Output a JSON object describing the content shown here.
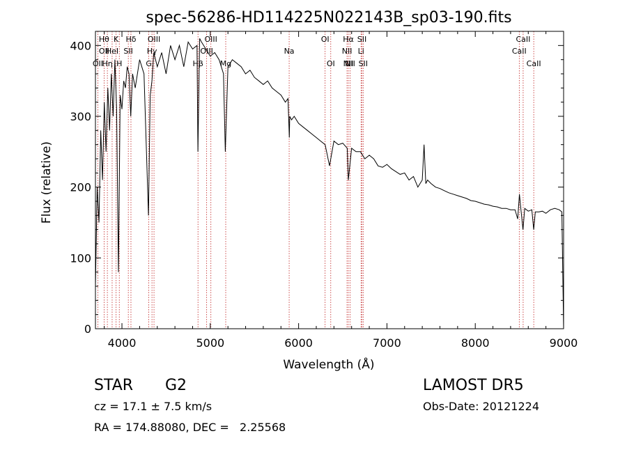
{
  "chart_data": {
    "type": "line",
    "title": "spec-56286-HD114225N022143B_sp03-190.fits",
    "xlabel": "Wavelength (Å)",
    "ylabel": "Flux (relative)",
    "xlim": [
      3700,
      9000
    ],
    "ylim": [
      0,
      420
    ],
    "xticks": [
      4000,
      5000,
      6000,
      7000,
      8000,
      9000
    ],
    "yticks": [
      0,
      100,
      200,
      300,
      400
    ],
    "grid": false,
    "series": [
      {
        "x": [
          3700,
          3720,
          3740,
          3760,
          3780,
          3800,
          3820,
          3840,
          3860,
          3880,
          3900,
          3920,
          3940,
          3960,
          3980,
          4000,
          4020,
          4040,
          4060,
          4080,
          4100,
          4120,
          4150,
          4200,
          4250,
          4300,
          4320,
          4340,
          4360,
          4400,
          4450,
          4500,
          4550,
          4600,
          4650,
          4700,
          4750,
          4800,
          4850,
          4860,
          4880,
          4900,
          4950,
          5000,
          5050,
          5100,
          5150,
          5170,
          5200,
          5250,
          5300,
          5350,
          5400,
          5450,
          5500,
          5550,
          5600,
          5650,
          5700,
          5750,
          5800,
          5850,
          5880,
          5895,
          5900,
          5920,
          5950,
          6000,
          6050,
          6100,
          6150,
          6200,
          6250,
          6300,
          6350,
          6400,
          6450,
          6500,
          6550,
          6563,
          6600,
          6650,
          6700,
          6750,
          6800,
          6850,
          6900,
          6950,
          7000,
          7050,
          7100,
          7150,
          7200,
          7250,
          7300,
          7350,
          7400,
          7420,
          7440,
          7460,
          7500,
          7550,
          7600,
          7650,
          7700,
          7750,
          7800,
          7850,
          7900,
          7950,
          8000,
          8050,
          8100,
          8150,
          8200,
          8250,
          8300,
          8350,
          8400,
          8450,
          8480,
          8500,
          8520,
          8540,
          8560,
          8600,
          8640,
          8662,
          8680,
          8720,
          8760,
          8800,
          8850,
          8900,
          8950,
          8980,
          9000
        ],
        "y": [
          60,
          200,
          150,
          280,
          210,
          320,
          250,
          340,
          280,
          360,
          300,
          380,
          310,
          80,
          330,
          310,
          350,
          340,
          370,
          360,
          300,
          360,
          340,
          380,
          360,
          160,
          330,
          350,
          390,
          370,
          390,
          360,
          400,
          380,
          400,
          370,
          405,
          395,
          400,
          250,
          410,
          405,
          395,
          385,
          390,
          380,
          360,
          250,
          370,
          380,
          375,
          370,
          360,
          365,
          355,
          350,
          345,
          350,
          340,
          335,
          330,
          320,
          325,
          270,
          300,
          295,
          300,
          290,
          285,
          280,
          275,
          270,
          265,
          260,
          230,
          265,
          260,
          262,
          255,
          210,
          255,
          250,
          250,
          240,
          245,
          240,
          230,
          228,
          232,
          226,
          222,
          218,
          220,
          210,
          215,
          200,
          210,
          260,
          205,
          210,
          205,
          200,
          198,
          195,
          192,
          190,
          188,
          186,
          184,
          181,
          180,
          178,
          176,
          175,
          173,
          172,
          170,
          170,
          168,
          168,
          155,
          190,
          165,
          140,
          170,
          166,
          168,
          140,
          165,
          165,
          166,
          163,
          168,
          170,
          168,
          165,
          0
        ],
        "color": "#000000"
      }
    ],
    "lines": [
      {
        "wl": 3727,
        "labels": [
          "OII"
        ],
        "row": [
          3
        ]
      },
      {
        "wl": 3798,
        "labels": [
          "Hθ",
          "OII"
        ],
        "row": [
          1,
          2
        ]
      },
      {
        "wl": 3835,
        "labels": [
          "Hη"
        ],
        "row": [
          3
        ]
      },
      {
        "wl": 3889,
        "labels": [
          "HeI"
        ],
        "row": [
          2
        ]
      },
      {
        "wl": 3934,
        "labels": [
          "K"
        ],
        "row": [
          1
        ]
      },
      {
        "wl": 3970,
        "labels": [
          "H"
        ],
        "row": [
          3
        ]
      },
      {
        "wl": 4072,
        "labels": [
          "SII"
        ],
        "row": [
          2
        ]
      },
      {
        "wl": 4102,
        "labels": [
          "Hδ"
        ],
        "row": [
          1
        ]
      },
      {
        "wl": 4304,
        "labels": [
          "G"
        ],
        "row": [
          3
        ]
      },
      {
        "wl": 4340,
        "labels": [
          "Hγ"
        ],
        "row": [
          2
        ]
      },
      {
        "wl": 4363,
        "labels": [
          "OIII"
        ],
        "row": [
          1
        ]
      },
      {
        "wl": 4861,
        "labels": [
          "Hβ"
        ],
        "row": [
          3
        ]
      },
      {
        "wl": 4959,
        "labels": [
          "OIII"
        ],
        "row": [
          2
        ]
      },
      {
        "wl": 5007,
        "labels": [
          "OIII"
        ],
        "row": [
          1
        ]
      },
      {
        "wl": 5175,
        "labels": [
          "Mg"
        ],
        "row": [
          3
        ]
      },
      {
        "wl": 5893,
        "labels": [
          "Na"
        ],
        "row": [
          2
        ]
      },
      {
        "wl": 6300,
        "labels": [
          "OI"
        ],
        "row": [
          1
        ]
      },
      {
        "wl": 6364,
        "labels": [
          "OI"
        ],
        "row": [
          3
        ]
      },
      {
        "wl": 6548,
        "labels": [
          "NII"
        ],
        "row": [
          2
        ]
      },
      {
        "wl": 6563,
        "labels": [
          "Hα",
          "NII"
        ],
        "row": [
          1,
          3
        ]
      },
      {
        "wl": 6583,
        "labels": [
          "NII"
        ],
        "row": [
          3
        ]
      },
      {
        "wl": 6707,
        "labels": [
          "Li"
        ],
        "row": [
          2
        ]
      },
      {
        "wl": 6717,
        "labels": [
          "SII"
        ],
        "row": [
          1
        ]
      },
      {
        "wl": 6731,
        "labels": [
          "SII"
        ],
        "row": [
          3
        ]
      },
      {
        "wl": 8498,
        "labels": [
          "CaII"
        ],
        "row": [
          2
        ]
      },
      {
        "wl": 8542,
        "labels": [
          "CaII"
        ],
        "row": [
          1
        ]
      },
      {
        "wl": 8662,
        "labels": [
          "CaII"
        ],
        "row": [
          3
        ]
      }
    ]
  },
  "info": {
    "class": "STAR",
    "subclass": "G2",
    "survey": "LAMOST DR5",
    "cz": "cz = 17.1 ± 7.5 km/s",
    "obs_date": "Obs-Date: 20121224",
    "coords": "RA = 174.88080, DEC =   2.25568"
  }
}
